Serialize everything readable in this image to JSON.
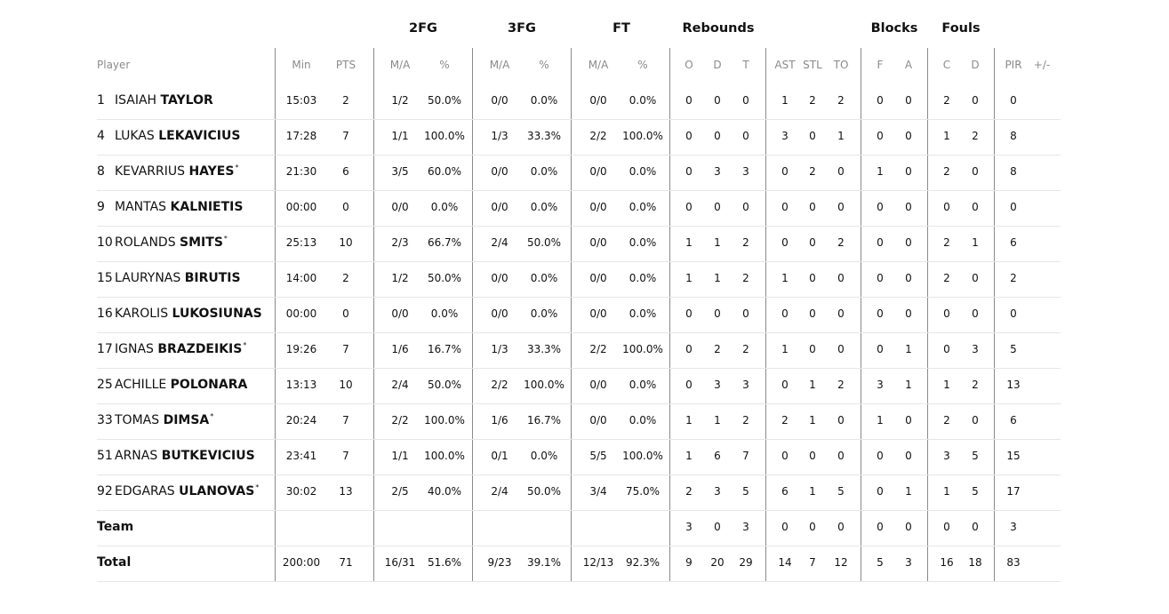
{
  "groups": {
    "fg2": "2FG",
    "fg3": "3FG",
    "ft": "FT",
    "rebounds": "Rebounds",
    "blocks": "Blocks",
    "fouls": "Fouls"
  },
  "headers": [
    "Player",
    "Min",
    "PTS",
    "M/A",
    "%",
    "M/A",
    "%",
    "M/A",
    "%",
    "O",
    "D",
    "T",
    "AST",
    "STL",
    "TO",
    "F",
    "A",
    "C",
    "D",
    "PIR",
    "+/-"
  ],
  "players": [
    {
      "num": "1",
      "first": "ISAIAH",
      "last": "TAYLOR",
      "starter": false,
      "stats": [
        "15:03",
        "2",
        "1/2",
        "50.0%",
        "0/0",
        "0.0%",
        "0/0",
        "0.0%",
        "0",
        "0",
        "0",
        "1",
        "2",
        "2",
        "0",
        "0",
        "2",
        "0",
        "0",
        ""
      ]
    },
    {
      "num": "4",
      "first": "LUKAS",
      "last": "LEKAVICIUS",
      "starter": false,
      "stats": [
        "17:28",
        "7",
        "1/1",
        "100.0%",
        "1/3",
        "33.3%",
        "2/2",
        "100.0%",
        "0",
        "0",
        "0",
        "3",
        "0",
        "1",
        "0",
        "0",
        "1",
        "2",
        "8",
        ""
      ]
    },
    {
      "num": "8",
      "first": "KEVARRIUS",
      "last": "HAYES",
      "starter": true,
      "stats": [
        "21:30",
        "6",
        "3/5",
        "60.0%",
        "0/0",
        "0.0%",
        "0/0",
        "0.0%",
        "0",
        "3",
        "3",
        "0",
        "2",
        "0",
        "1",
        "0",
        "2",
        "0",
        "8",
        ""
      ]
    },
    {
      "num": "9",
      "first": "MANTAS",
      "last": "KALNIETIS",
      "starter": false,
      "stats": [
        "00:00",
        "0",
        "0/0",
        "0.0%",
        "0/0",
        "0.0%",
        "0/0",
        "0.0%",
        "0",
        "0",
        "0",
        "0",
        "0",
        "0",
        "0",
        "0",
        "0",
        "0",
        "0",
        ""
      ]
    },
    {
      "num": "10",
      "first": "ROLANDS",
      "last": "SMITS",
      "starter": true,
      "stats": [
        "25:13",
        "10",
        "2/3",
        "66.7%",
        "2/4",
        "50.0%",
        "0/0",
        "0.0%",
        "1",
        "1",
        "2",
        "0",
        "0",
        "2",
        "0",
        "0",
        "2",
        "1",
        "6",
        ""
      ]
    },
    {
      "num": "15",
      "first": "LAURYNAS",
      "last": "BIRUTIS",
      "starter": false,
      "stats": [
        "14:00",
        "2",
        "1/2",
        "50.0%",
        "0/0",
        "0.0%",
        "0/0",
        "0.0%",
        "1",
        "1",
        "2",
        "1",
        "0",
        "0",
        "0",
        "0",
        "2",
        "0",
        "2",
        ""
      ]
    },
    {
      "num": "16",
      "first": "KAROLIS",
      "last": "LUKOSIUNAS",
      "starter": false,
      "stats": [
        "00:00",
        "0",
        "0/0",
        "0.0%",
        "0/0",
        "0.0%",
        "0/0",
        "0.0%",
        "0",
        "0",
        "0",
        "0",
        "0",
        "0",
        "0",
        "0",
        "0",
        "0",
        "0",
        ""
      ]
    },
    {
      "num": "17",
      "first": "IGNAS",
      "last": "BRAZDEIKIS",
      "starter": true,
      "stats": [
        "19:26",
        "7",
        "1/6",
        "16.7%",
        "1/3",
        "33.3%",
        "2/2",
        "100.0%",
        "0",
        "2",
        "2",
        "1",
        "0",
        "0",
        "0",
        "1",
        "0",
        "3",
        "5",
        ""
      ]
    },
    {
      "num": "25",
      "first": "ACHILLE",
      "last": "POLONARA",
      "starter": false,
      "stats": [
        "13:13",
        "10",
        "2/4",
        "50.0%",
        "2/2",
        "100.0%",
        "0/0",
        "0.0%",
        "0",
        "3",
        "3",
        "0",
        "1",
        "2",
        "3",
        "1",
        "1",
        "2",
        "13",
        ""
      ]
    },
    {
      "num": "33",
      "first": "TOMAS",
      "last": "DIMSA",
      "starter": true,
      "stats": [
        "20:24",
        "7",
        "2/2",
        "100.0%",
        "1/6",
        "16.7%",
        "0/0",
        "0.0%",
        "1",
        "1",
        "2",
        "2",
        "1",
        "0",
        "1",
        "0",
        "2",
        "0",
        "6",
        ""
      ]
    },
    {
      "num": "51",
      "first": "ARNAS",
      "last": "BUTKEVICIUS",
      "starter": false,
      "stats": [
        "23:41",
        "7",
        "1/1",
        "100.0%",
        "0/1",
        "0.0%",
        "5/5",
        "100.0%",
        "1",
        "6",
        "7",
        "0",
        "0",
        "0",
        "0",
        "0",
        "3",
        "5",
        "15",
        ""
      ]
    },
    {
      "num": "92",
      "first": "EDGARAS",
      "last": "ULANOVAS",
      "starter": true,
      "stats": [
        "30:02",
        "13",
        "2/5",
        "40.0%",
        "2/4",
        "50.0%",
        "3/4",
        "75.0%",
        "2",
        "3",
        "5",
        "6",
        "1",
        "5",
        "0",
        "1",
        "1",
        "5",
        "17",
        ""
      ]
    }
  ],
  "team": {
    "label": "Team",
    "stats": [
      "",
      "",
      "",
      "",
      "",
      "",
      "",
      "",
      "3",
      "0",
      "3",
      "0",
      "0",
      "0",
      "0",
      "0",
      "0",
      "0",
      "3",
      ""
    ]
  },
  "total": {
    "label": "Total",
    "stats": [
      "200:00",
      "71",
      "16/31",
      "51.6%",
      "9/23",
      "39.1%",
      "12/13",
      "92.3%",
      "9",
      "20",
      "29",
      "14",
      "7",
      "12",
      "5",
      "3",
      "16",
      "18",
      "83",
      ""
    ]
  },
  "starter_mark": "*"
}
